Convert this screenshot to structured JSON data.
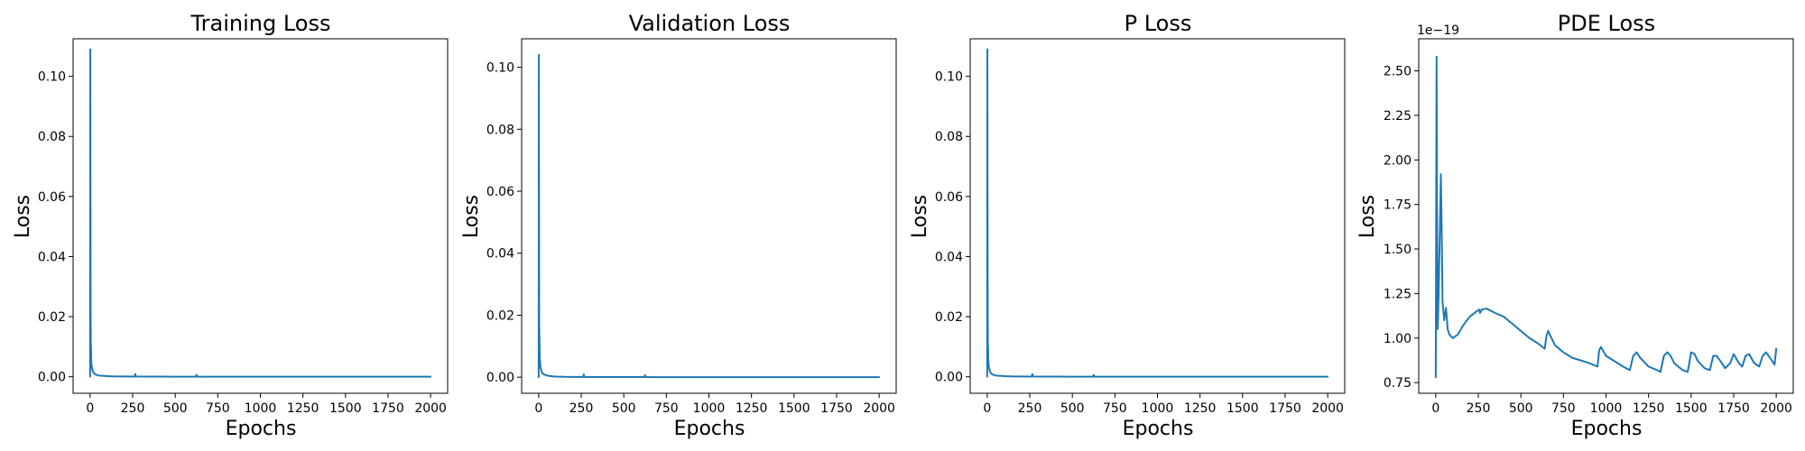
{
  "chart_data": [
    {
      "type": "line",
      "title": "Training Loss",
      "xlabel": "Epochs",
      "ylabel": "Loss",
      "xlim": [
        -100,
        2100
      ],
      "ylim": [
        -0.0055,
        0.1125
      ],
      "xticks": [
        0,
        250,
        500,
        750,
        1000,
        1250,
        1500,
        1750,
        2000
      ],
      "yticks": [
        0.0,
        0.02,
        0.04,
        0.06,
        0.08,
        0.1
      ],
      "ytick_labels": [
        "0.00",
        "0.02",
        "0.04",
        "0.06",
        "0.08",
        "0.10"
      ],
      "offset_text": "",
      "series": [
        {
          "color": "#1f77b4",
          "x": [
            0,
            1,
            2,
            3,
            4,
            5,
            6,
            8,
            10,
            15,
            20,
            30,
            50,
            75,
            100,
            150,
            200,
            262,
            265,
            268,
            300,
            400,
            500,
            620,
            625,
            630,
            700,
            800,
            950,
            1000,
            1150,
            1250,
            1500,
            1750,
            2000
          ],
          "y": [
            0.0,
            0.109,
            0.06,
            0.02,
            0.009,
            0.0105,
            0.006,
            0.004,
            0.0032,
            0.002,
            0.0013,
            0.0008,
            0.0004,
            0.0003,
            0.0002,
            0.0001,
            8e-05,
            7e-05,
            0.0009,
            8e-05,
            5e-05,
            4e-05,
            3e-05,
            3e-05,
            0.0006,
            3e-05,
            2e-05,
            2e-05,
            2e-05,
            2e-05,
            2e-05,
            1e-05,
            1e-05,
            1e-05,
            1e-05
          ]
        }
      ]
    },
    {
      "type": "line",
      "title": "Validation Loss",
      "xlabel": "Epochs",
      "ylabel": "Loss",
      "xlim": [
        -100,
        2100
      ],
      "ylim": [
        -0.0052,
        0.1092
      ],
      "xticks": [
        0,
        250,
        500,
        750,
        1000,
        1250,
        1500,
        1750,
        2000
      ],
      "yticks": [
        0.0,
        0.02,
        0.04,
        0.06,
        0.08,
        0.1
      ],
      "ytick_labels": [
        "0.00",
        "0.02",
        "0.04",
        "0.06",
        "0.08",
        "0.10"
      ],
      "offset_text": "",
      "series": [
        {
          "color": "#1f77b4",
          "x": [
            0,
            1,
            2,
            3,
            4,
            5,
            6,
            8,
            10,
            15,
            20,
            30,
            50,
            75,
            100,
            150,
            200,
            262,
            265,
            268,
            300,
            400,
            500,
            620,
            625,
            630,
            700,
            800,
            950,
            1000,
            1150,
            1250,
            1500,
            1750,
            2000
          ],
          "y": [
            0.0,
            0.104,
            0.06,
            0.02,
            0.012,
            0.013,
            0.007,
            0.005,
            0.0035,
            0.0022,
            0.0014,
            0.0009,
            0.0005,
            0.0003,
            0.0002,
            0.0001,
            8e-05,
            7e-05,
            0.0009,
            8e-05,
            5e-05,
            4e-05,
            3e-05,
            3e-05,
            0.0006,
            3e-05,
            2e-05,
            2e-05,
            2e-05,
            2e-05,
            2e-05,
            1e-05,
            1e-05,
            1e-05,
            1e-05
          ]
        }
      ]
    },
    {
      "type": "line",
      "title": "P Loss",
      "xlabel": "Epochs",
      "ylabel": "Loss",
      "xlim": [
        -100,
        2100
      ],
      "ylim": [
        -0.0055,
        0.1125
      ],
      "xticks": [
        0,
        250,
        500,
        750,
        1000,
        1250,
        1500,
        1750,
        2000
      ],
      "yticks": [
        0.0,
        0.02,
        0.04,
        0.06,
        0.08,
        0.1
      ],
      "ytick_labels": [
        "0.00",
        "0.02",
        "0.04",
        "0.06",
        "0.08",
        "0.10"
      ],
      "offset_text": "",
      "series": [
        {
          "color": "#1f77b4",
          "x": [
            0,
            1,
            2,
            3,
            4,
            5,
            6,
            8,
            10,
            15,
            20,
            30,
            50,
            75,
            100,
            150,
            200,
            262,
            265,
            268,
            300,
            400,
            500,
            620,
            625,
            630,
            700,
            800,
            950,
            1000,
            1150,
            1250,
            1500,
            1750,
            2000
          ],
          "y": [
            0.0,
            0.109,
            0.06,
            0.02,
            0.009,
            0.0105,
            0.006,
            0.004,
            0.0032,
            0.002,
            0.0013,
            0.0008,
            0.0004,
            0.0003,
            0.0002,
            0.0001,
            8e-05,
            7e-05,
            0.0009,
            8e-05,
            5e-05,
            4e-05,
            3e-05,
            3e-05,
            0.0006,
            3e-05,
            2e-05,
            2e-05,
            2e-05,
            2e-05,
            2e-05,
            1e-05,
            1e-05,
            1e-05,
            1e-05
          ]
        }
      ]
    },
    {
      "type": "line",
      "title": "PDE Loss",
      "xlabel": "Epochs",
      "ylabel": "Loss",
      "xlim": [
        -100,
        2100
      ],
      "ylim": [
        0.69,
        2.68
      ],
      "xticks": [
        0,
        250,
        500,
        750,
        1000,
        1250,
        1500,
        1750,
        2000
      ],
      "yticks": [
        0.75,
        1.0,
        1.25,
        1.5,
        1.75,
        2.0,
        2.25,
        2.5
      ],
      "ytick_labels": [
        "0.75",
        "1.00",
        "1.25",
        "1.50",
        "1.75",
        "2.00",
        "2.25",
        "2.50"
      ],
      "offset_text": "1e−19",
      "series": [
        {
          "color": "#1f77b4",
          "x": [
            0,
            5,
            8,
            12,
            18,
            25,
            30,
            35,
            40,
            50,
            60,
            70,
            80,
            100,
            130,
            160,
            200,
            240,
            255,
            260,
            270,
            300,
            350,
            400,
            450,
            500,
            550,
            600,
            640,
            650,
            660,
            680,
            700,
            750,
            800,
            900,
            950,
            960,
            970,
            1000,
            1100,
            1140,
            1160,
            1180,
            1200,
            1250,
            1300,
            1320,
            1340,
            1360,
            1380,
            1400,
            1450,
            1480,
            1500,
            1520,
            1540,
            1580,
            1610,
            1630,
            1650,
            1680,
            1700,
            1730,
            1750,
            1780,
            1800,
            1820,
            1840,
            1870,
            1900,
            1920,
            1940,
            1970,
            1990,
            2000
          ],
          "y": [
            0.78,
            2.58,
            1.6,
            1.05,
            1.3,
            1.65,
            1.92,
            1.6,
            1.2,
            1.1,
            1.17,
            1.05,
            1.02,
            1.0,
            1.02,
            1.07,
            1.12,
            1.15,
            1.16,
            1.14,
            1.16,
            1.165,
            1.14,
            1.12,
            1.08,
            1.04,
            1.0,
            0.97,
            0.94,
            1.01,
            1.04,
            1.0,
            0.96,
            0.92,
            0.89,
            0.86,
            0.84,
            0.93,
            0.95,
            0.9,
            0.84,
            0.82,
            0.9,
            0.92,
            0.89,
            0.84,
            0.82,
            0.81,
            0.9,
            0.92,
            0.9,
            0.86,
            0.82,
            0.81,
            0.92,
            0.91,
            0.87,
            0.83,
            0.82,
            0.9,
            0.9,
            0.86,
            0.83,
            0.86,
            0.91,
            0.86,
            0.84,
            0.9,
            0.91,
            0.86,
            0.84,
            0.9,
            0.92,
            0.88,
            0.85,
            0.94
          ]
        }
      ]
    }
  ]
}
